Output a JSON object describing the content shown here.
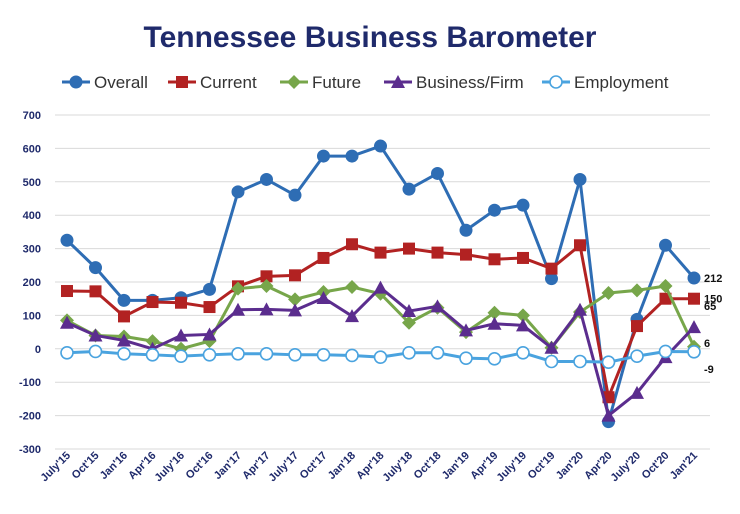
{
  "chart_data": {
    "type": "line",
    "title": "Tennessee Business Barometer",
    "xlabel": "",
    "ylabel": "",
    "ylim": [
      -300,
      700
    ],
    "yticks": [
      -300,
      -200,
      -100,
      0,
      100,
      200,
      300,
      400,
      500,
      600,
      700
    ],
    "grid": true,
    "legend_position": "top",
    "categories": [
      "July'15",
      "Oct'15",
      "Jan'16",
      "Apr'16",
      "July'16",
      "Oct'16",
      "Jan'17",
      "Apr'17",
      "July'17",
      "Oct'17",
      "Jan'18",
      "Apr'18",
      "July'18",
      "Oct'18",
      "Jan'19",
      "Apr'19",
      "July'19",
      "Oct'19",
      "Jan'20",
      "Apr'20",
      "July'20",
      "Oct'20",
      "Jan'21"
    ],
    "series": [
      {
        "name": "Overall",
        "color": "#2e6db4",
        "marker": "circle",
        "end_label": "212",
        "values": [
          325,
          243,
          145,
          145,
          153,
          178,
          470,
          507,
          460,
          577,
          577,
          607,
          478,
          525,
          355,
          415,
          430,
          210,
          507,
          -218,
          88,
          310,
          212
        ]
      },
      {
        "name": "Current",
        "color": "#b22222",
        "marker": "square",
        "end_label": "150",
        "values": [
          173,
          172,
          97,
          140,
          138,
          125,
          187,
          217,
          220,
          272,
          313,
          288,
          300,
          288,
          282,
          268,
          272,
          240,
          310,
          -145,
          68,
          150,
          150
        ]
      },
      {
        "name": "Future",
        "color": "#77a64a",
        "marker": "diamond",
        "end_label": "6",
        "values": [
          85,
          40,
          37,
          23,
          0,
          23,
          180,
          188,
          148,
          170,
          185,
          165,
          78,
          123,
          50,
          108,
          100,
          3,
          110,
          167,
          175,
          188,
          6
        ]
      },
      {
        "name": "Business/Firm",
        "color": "#5b2d8e",
        "marker": "triangle",
        "end_label": "65",
        "values": [
          78,
          40,
          25,
          0,
          40,
          43,
          117,
          118,
          115,
          152,
          98,
          183,
          113,
          127,
          55,
          75,
          70,
          3,
          117,
          -200,
          -132,
          -25,
          65
        ]
      },
      {
        "name": "Employment",
        "color": "#4aa3df",
        "marker": "open-circle",
        "end_label": "-9",
        "values": [
          -12,
          -8,
          -15,
          -18,
          -22,
          -18,
          -15,
          -15,
          -18,
          -18,
          -20,
          -25,
          -12,
          -12,
          -28,
          -30,
          -12,
          -38,
          -38,
          -40,
          -22,
          -8,
          -9
        ]
      }
    ]
  }
}
